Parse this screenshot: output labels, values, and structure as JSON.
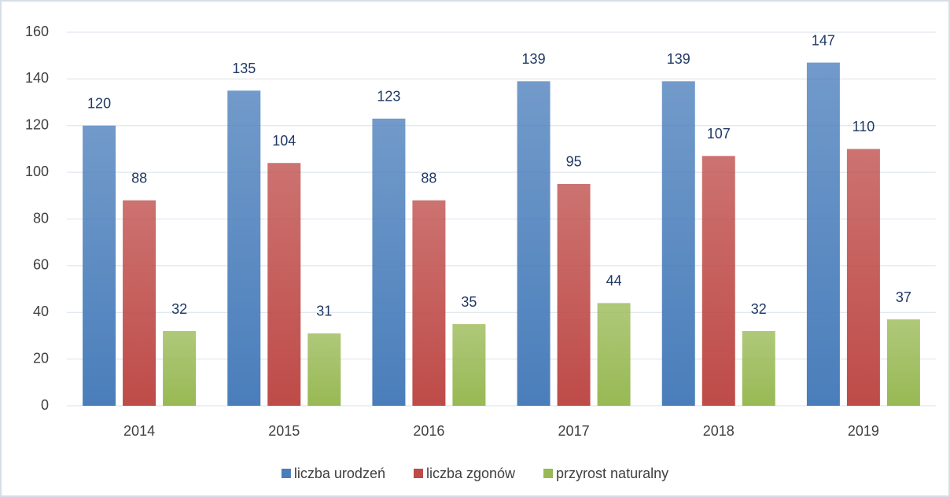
{
  "chart_data": {
    "type": "bar",
    "categories": [
      "2014",
      "2015",
      "2016",
      "2017",
      "2018",
      "2019"
    ],
    "series": [
      {
        "name": "liczba urodzeń",
        "color": "#4a7ebb",
        "values": [
          120,
          135,
          123,
          139,
          139,
          147
        ]
      },
      {
        "name": "liczba zgonów",
        "color": "#be4b48",
        "values": [
          88,
          104,
          88,
          95,
          107,
          110
        ]
      },
      {
        "name": "przyrost naturalny",
        "color": "#98b954",
        "values": [
          32,
          31,
          35,
          44,
          32,
          37
        ]
      }
    ],
    "ylim": [
      0,
      160
    ],
    "yticks": [
      0,
      20,
      40,
      60,
      80,
      100,
      120,
      140,
      160
    ],
    "grid": true,
    "legend": "bottom"
  }
}
